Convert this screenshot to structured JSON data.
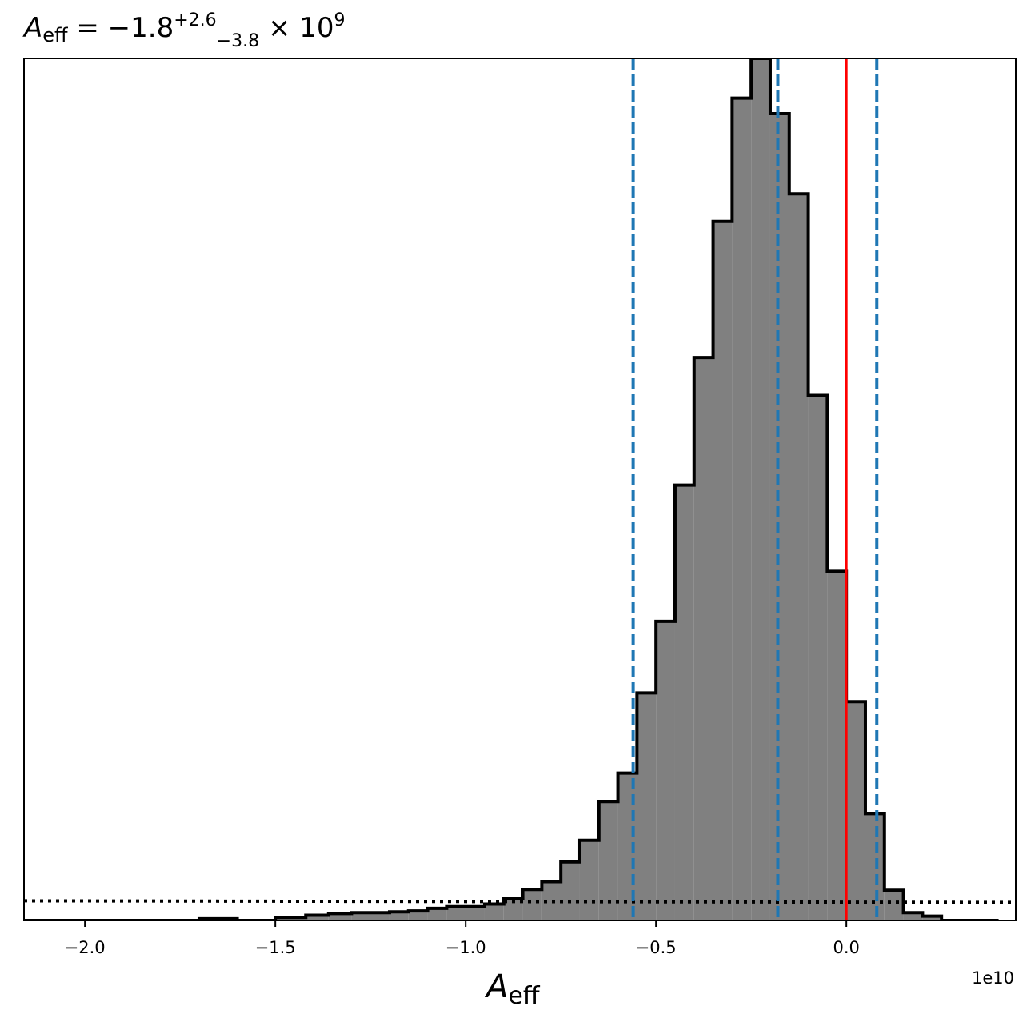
{
  "chart_data": {
    "type": "histogram",
    "title": {
      "symbol": "A",
      "symbol_sub": "eff",
      "equals": " = −1.8",
      "sup": "+2.6",
      "sub": "−3.8",
      "times": " × 10",
      "exp": "9"
    },
    "xlabel": {
      "symbol": "A",
      "sub": "eff"
    },
    "x_offset_label": "1e10",
    "xlim": [
      -2.16,
      0.445
    ],
    "ylim": [
      0,
      1.0
    ],
    "x_ticks": [
      -2.0,
      -1.5,
      -1.0,
      -0.5,
      0.0
    ],
    "x_tick_labels": [
      "−2.0",
      "−1.5",
      "−1.0",
      "−0.5",
      "0.0"
    ],
    "bin_edges": [
      -2.16,
      -1.7,
      -1.6,
      -1.5,
      -1.42,
      -1.36,
      -1.3,
      -1.2,
      -1.15,
      -1.1,
      -1.05,
      -0.95,
      -0.9,
      -0.85,
      -0.8,
      -0.75,
      -0.7,
      -0.65,
      -0.6,
      -0.55,
      -0.5,
      -0.45,
      -0.4,
      -0.35,
      -0.3,
      -0.25,
      -0.2,
      -0.15,
      -0.1,
      -0.05,
      0.0,
      0.05,
      0.1,
      0.15,
      0.2,
      0.25,
      0.3,
      0.35,
      0.4
    ],
    "counts": [
      0.0,
      0.002,
      0.0,
      0.0035,
      0.006,
      0.008,
      0.009,
      0.01,
      0.011,
      0.014,
      0.016,
      0.019,
      0.025,
      0.036,
      0.045,
      0.068,
      0.093,
      0.138,
      0.171,
      0.264,
      0.347,
      0.505,
      0.653,
      0.811,
      0.954,
      1.0,
      0.936,
      0.843,
      0.609,
      0.405,
      0.254,
      0.124,
      0.035,
      0.009,
      0.005,
      0.0,
      0.0,
      0.0
    ],
    "hist_fill": "#808080",
    "hist_edge": "#000000",
    "prior_line_y": 0.0228,
    "prior_style": "dotted black",
    "quantile_lines": [
      -0.56,
      -0.18,
      0.08
    ],
    "quantile_color": "#1f77b4",
    "truth_line": 0.0,
    "truth_color": "#ff0000",
    "grid": false
  }
}
